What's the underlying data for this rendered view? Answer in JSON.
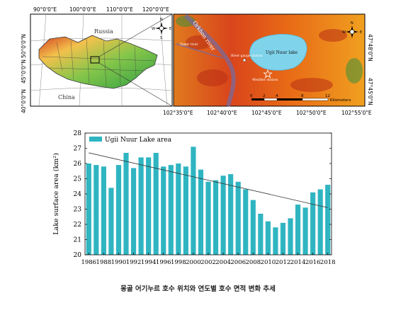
{
  "map": {
    "top_ticks": [
      "90°0'0\"E",
      "100°0'0\"E",
      "110°0'0\"E",
      "120°0'0\"E"
    ],
    "left_ticks": [
      "50°0'0\"N",
      "45°0'0\"N",
      "40°0'0\"N"
    ],
    "bottom_ticks": [
      "102°35'0\"E",
      "102°40'0\"E",
      "102°45'0\"E",
      "102°50'0\"E",
      "102°55'0\"E"
    ],
    "right_ticks": [
      "47°48'0\"N",
      "47°45'0\"N"
    ],
    "labels": {
      "russia": "Russia",
      "china": "China",
      "orkhon_river": "Orkhon river",
      "lake": "Ugii Nuur lake",
      "weather_station": "Weather station",
      "river_gauge": "River gauge station",
      "tamir_river": "Tamir river"
    },
    "compass": {
      "n": "N",
      "s": "S",
      "e": "E",
      "w": "W"
    },
    "scale": {
      "ticks": [
        "0",
        "2",
        "4",
        "8",
        "12"
      ],
      "unit": "Kilometers"
    },
    "colors": {
      "low": "#2ea043",
      "mid": "#f2e14c",
      "high": "#d23b1f",
      "water": "#7fd3ea"
    }
  },
  "chart_data": {
    "type": "bar",
    "legend": "Ugii Nuur Lake area",
    "legend_position": "top-left",
    "ylabel": "Lake surface area (km²)",
    "ylim": [
      20,
      28
    ],
    "yticks": [
      20,
      21,
      22,
      23,
      24,
      25,
      26,
      27,
      28
    ],
    "xtick_labels": [
      "1986",
      "1988",
      "1990",
      "1992",
      "1994",
      "1996",
      "1998",
      "2000",
      "2002",
      "2004",
      "2006",
      "2008",
      "2010",
      "2012",
      "2014",
      "2016",
      "2018"
    ],
    "categories": [
      1986,
      1987,
      1988,
      1989,
      1990,
      1991,
      1992,
      1993,
      1994,
      1995,
      1996,
      1997,
      1998,
      1999,
      2000,
      2001,
      2002,
      2003,
      2004,
      2005,
      2006,
      2007,
      2008,
      2009,
      2010,
      2011,
      2012,
      2013,
      2014,
      2015,
      2016,
      2017,
      2018
    ],
    "values": [
      26.0,
      25.9,
      25.8,
      24.4,
      25.9,
      26.7,
      25.7,
      26.4,
      26.4,
      26.7,
      25.8,
      25.9,
      26.0,
      25.8,
      27.1,
      25.6,
      24.8,
      24.9,
      25.2,
      25.3,
      24.8,
      24.3,
      23.6,
      22.7,
      22.2,
      21.8,
      22.1,
      22.4,
      23.3,
      23.1,
      24.1,
      24.3,
      24.6
    ],
    "trendline": {
      "start": [
        1986,
        26.7
      ],
      "end": [
        2018,
        23.1
      ]
    },
    "bar_color": "#2fb5c1",
    "grid": false
  },
  "caption": "몽골 어기누르 호수 위치와 연도별 호수 면적 변화 추세"
}
